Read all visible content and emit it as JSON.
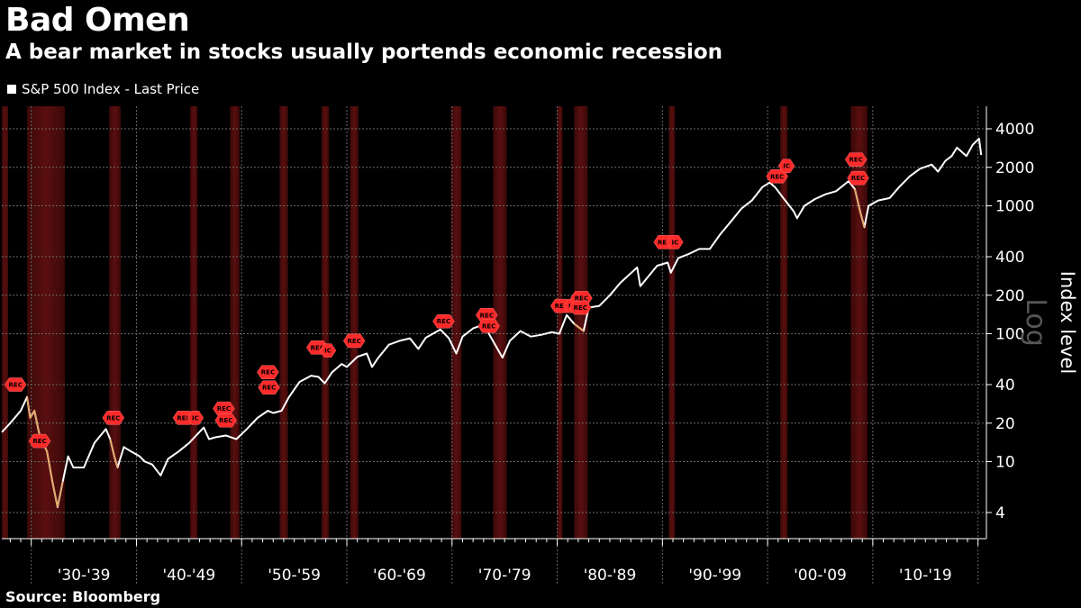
{
  "header": {
    "title": "Bad Omen",
    "subtitle": "A bear market in stocks usually portends economic recession"
  },
  "legend": {
    "label": "S&P 500 Index - Last Price"
  },
  "footer": {
    "source": "Source: Bloomberg"
  },
  "colors": {
    "background": "#000000",
    "line": "#ffffff",
    "recession_band": "#5a0f0f",
    "bear_highlight": "#e08a2a",
    "marker": "#ff2b2b"
  },
  "chart_data": {
    "type": "line",
    "title": "Bad Omen",
    "subtitle": "A bear market in stocks usually portends economic recession",
    "ylabel": "Index level",
    "y_scale": "log",
    "y_scale_watermark": "Log",
    "ylim": [
      2.5,
      6000
    ],
    "xlim": [
      1927.2,
      2020.8
    ],
    "grid": true,
    "legend_position": "top-left",
    "y_ticks": [
      4,
      10,
      20,
      40,
      100,
      200,
      400,
      1000,
      2000,
      4000
    ],
    "x_decades": [
      "'30-'39",
      "'40-'49",
      "'50-'59",
      "'60-'69",
      "'70-'79",
      "'80-'89",
      "'90-'99",
      "'00-'09",
      "'10-'19"
    ],
    "x_decade_starts": [
      1930,
      1940,
      1950,
      1960,
      1970,
      1980,
      1990,
      2000,
      2010
    ],
    "series": [
      {
        "name": "S&P 500 Index - Last Price",
        "points": [
          [
            1927.2,
            17
          ],
          [
            1928.0,
            20
          ],
          [
            1929.0,
            25
          ],
          [
            1929.6,
            32
          ],
          [
            1929.9,
            22
          ],
          [
            1930.3,
            25
          ],
          [
            1930.8,
            16
          ],
          [
            1931.5,
            12
          ],
          [
            1932.0,
            7
          ],
          [
            1932.5,
            4.4
          ],
          [
            1933.0,
            7
          ],
          [
            1933.5,
            11
          ],
          [
            1934.0,
            9
          ],
          [
            1935.0,
            9
          ],
          [
            1936.0,
            14
          ],
          [
            1937.1,
            18
          ],
          [
            1937.5,
            15
          ],
          [
            1937.9,
            11
          ],
          [
            1938.2,
            9
          ],
          [
            1938.8,
            13
          ],
          [
            1939.5,
            12
          ],
          [
            1940.3,
            11
          ],
          [
            1940.8,
            10
          ],
          [
            1941.5,
            9.5
          ],
          [
            1942.3,
            7.8
          ],
          [
            1943.0,
            10.5
          ],
          [
            1944.0,
            12
          ],
          [
            1945.0,
            14
          ],
          [
            1946.4,
            18.5
          ],
          [
            1946.9,
            15
          ],
          [
            1947.5,
            15.5
          ],
          [
            1948.5,
            16
          ],
          [
            1949.5,
            15
          ],
          [
            1950.5,
            18
          ],
          [
            1951.5,
            22
          ],
          [
            1952.5,
            25
          ],
          [
            1953.0,
            24
          ],
          [
            1953.8,
            25
          ],
          [
            1954.5,
            32
          ],
          [
            1955.5,
            42
          ],
          [
            1956.6,
            47
          ],
          [
            1957.3,
            46
          ],
          [
            1957.9,
            41
          ],
          [
            1958.6,
            50
          ],
          [
            1959.5,
            58
          ],
          [
            1960.0,
            55
          ],
          [
            1961.0,
            66
          ],
          [
            1961.9,
            70
          ],
          [
            1962.4,
            55
          ],
          [
            1963.0,
            65
          ],
          [
            1964.0,
            82
          ],
          [
            1965.0,
            88
          ],
          [
            1966.0,
            92
          ],
          [
            1966.8,
            76
          ],
          [
            1967.5,
            93
          ],
          [
            1968.9,
            108
          ],
          [
            1969.7,
            92
          ],
          [
            1970.4,
            70
          ],
          [
            1971.0,
            95
          ],
          [
            1972.0,
            110
          ],
          [
            1973.0,
            118
          ],
          [
            1973.5,
            100
          ],
          [
            1974.8,
            65
          ],
          [
            1975.5,
            88
          ],
          [
            1976.5,
            105
          ],
          [
            1977.5,
            95
          ],
          [
            1978.5,
            98
          ],
          [
            1979.5,
            103
          ],
          [
            1980.2,
            100
          ],
          [
            1980.9,
            140
          ],
          [
            1981.6,
            120
          ],
          [
            1982.5,
            105
          ],
          [
            1983.0,
            160
          ],
          [
            1984.0,
            165
          ],
          [
            1985.0,
            200
          ],
          [
            1986.0,
            250
          ],
          [
            1987.6,
            330
          ],
          [
            1987.9,
            235
          ],
          [
            1988.5,
            270
          ],
          [
            1989.5,
            340
          ],
          [
            1990.5,
            360
          ],
          [
            1990.8,
            300
          ],
          [
            1991.5,
            390
          ],
          [
            1992.5,
            420
          ],
          [
            1993.5,
            460
          ],
          [
            1994.5,
            460
          ],
          [
            1995.5,
            600
          ],
          [
            1996.5,
            750
          ],
          [
            1997.5,
            950
          ],
          [
            1998.5,
            1100
          ],
          [
            1999.5,
            1400
          ],
          [
            2000.2,
            1520
          ],
          [
            2000.7,
            1400
          ],
          [
            2001.5,
            1150
          ],
          [
            2002.5,
            900
          ],
          [
            2002.8,
            800
          ],
          [
            2003.5,
            1000
          ],
          [
            2004.5,
            1130
          ],
          [
            2005.5,
            1230
          ],
          [
            2006.5,
            1300
          ],
          [
            2007.7,
            1560
          ],
          [
            2008.3,
            1350
          ],
          [
            2008.8,
            900
          ],
          [
            2009.2,
            680
          ],
          [
            2009.6,
            1000
          ],
          [
            2010.5,
            1100
          ],
          [
            2011.6,
            1150
          ],
          [
            2012.5,
            1400
          ],
          [
            2013.5,
            1700
          ],
          [
            2014.5,
            1950
          ],
          [
            2015.6,
            2100
          ],
          [
            2016.2,
            1850
          ],
          [
            2016.9,
            2250
          ],
          [
            2017.5,
            2450
          ],
          [
            2018.0,
            2850
          ],
          [
            2018.9,
            2450
          ],
          [
            2019.5,
            3000
          ],
          [
            2020.1,
            3350
          ],
          [
            2020.3,
            2500
          ]
        ]
      }
    ],
    "recession_periods": [
      [
        1926.8,
        1927.8
      ],
      [
        1929.6,
        1933.2
      ],
      [
        1937.4,
        1938.5
      ],
      [
        1945.1,
        1945.8
      ],
      [
        1948.9,
        1949.8
      ],
      [
        1953.6,
        1954.4
      ],
      [
        1957.6,
        1958.3
      ],
      [
        1960.3,
        1961.1
      ],
      [
        1969.9,
        1970.9
      ],
      [
        1973.9,
        1975.2
      ],
      [
        1980.0,
        1980.5
      ],
      [
        1981.6,
        1982.9
      ],
      [
        1990.6,
        1991.2
      ],
      [
        2001.2,
        2001.9
      ],
      [
        2007.9,
        2009.5
      ]
    ],
    "annotations": [
      {
        "label": "REC",
        "x": 1928.5,
        "y": 40
      },
      {
        "label": "REC",
        "x": 1930.8,
        "y": 14.5
      },
      {
        "label": "REC",
        "x": 1937.8,
        "y": 22
      },
      {
        "label": "REC",
        "x": 1944.5,
        "y": 22
      },
      {
        "label": "IC",
        "x": 1945.6,
        "y": 22
      },
      {
        "label": "REC",
        "x": 1948.3,
        "y": 26
      },
      {
        "label": "REC",
        "x": 1948.5,
        "y": 21
      },
      {
        "label": "REC",
        "x": 1952.5,
        "y": 50
      },
      {
        "label": "REC",
        "x": 1952.6,
        "y": 38
      },
      {
        "label": "REC",
        "x": 1957.2,
        "y": 78
      },
      {
        "label": "IC",
        "x": 1958.2,
        "y": 74
      },
      {
        "label": "REC",
        "x": 1960.7,
        "y": 88
      },
      {
        "label": "REC",
        "x": 1969.2,
        "y": 125
      },
      {
        "label": "REC",
        "x": 1973.3,
        "y": 140
      },
      {
        "label": "REC",
        "x": 1973.5,
        "y": 115
      },
      {
        "label": "REC",
        "x": 1980.4,
        "y": 165
      },
      {
        "label": "IC",
        "x": 1981.4,
        "y": 165
      },
      {
        "label": "REC",
        "x": 1982.3,
        "y": 190
      },
      {
        "label": "REC",
        "x": 1982.2,
        "y": 160
      },
      {
        "label": "REC",
        "x": 1990.2,
        "y": 520
      },
      {
        "label": "IC",
        "x": 1991.2,
        "y": 520
      },
      {
        "label": "REC",
        "x": 2000.9,
        "y": 1700
      },
      {
        "label": "IC",
        "x": 2001.8,
        "y": 2050
      },
      {
        "label": "REC",
        "x": 2008.4,
        "y": 2300
      },
      {
        "label": "REC",
        "x": 2008.6,
        "y": 1650
      }
    ]
  }
}
